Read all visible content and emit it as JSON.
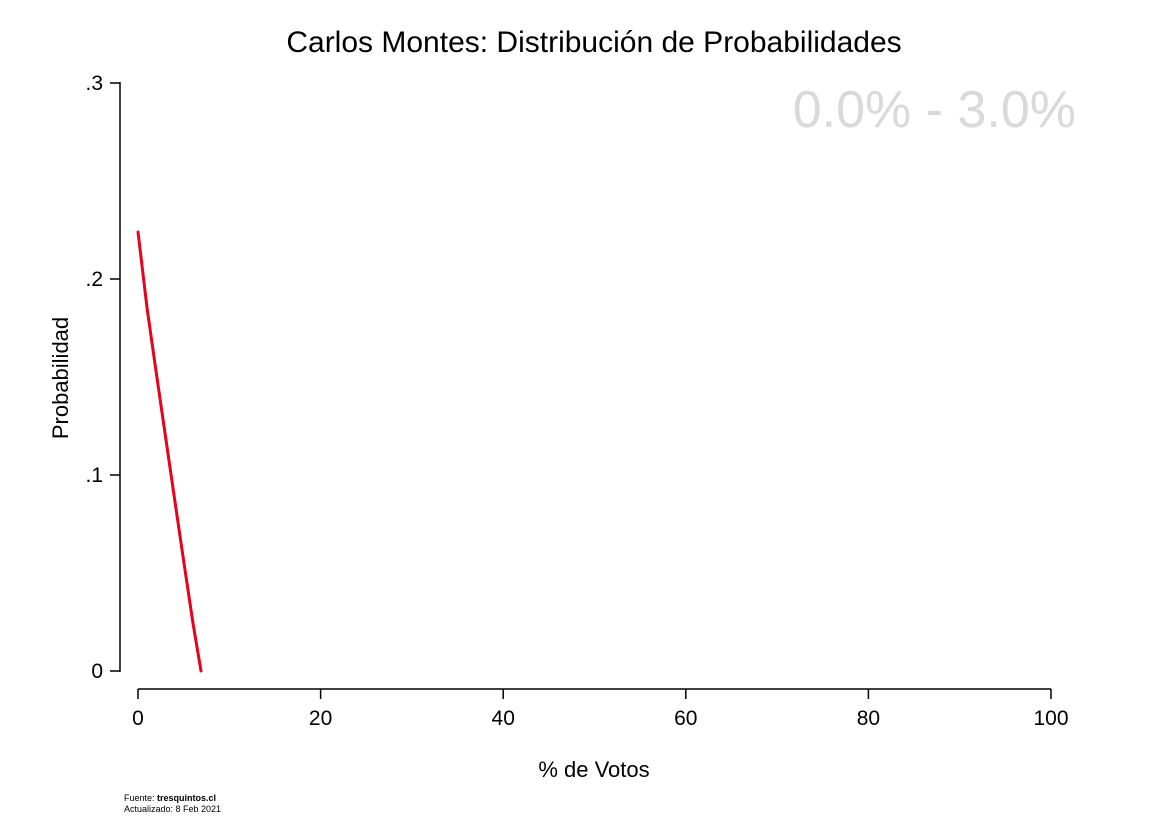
{
  "chart_data": {
    "type": "line",
    "title": "Carlos Montes: Distribución de Probabilidades",
    "xlabel": "% de Votos",
    "ylabel": "Probabilidad",
    "xlim": [
      0,
      100
    ],
    "ylim": [
      0,
      0.3
    ],
    "x_ticks": [
      0,
      20,
      40,
      60,
      80,
      100
    ],
    "x_tick_labels": [
      "0",
      "20",
      "40",
      "60",
      "80",
      "100"
    ],
    "y_ticks": [
      0,
      0.1,
      0.2,
      0.3
    ],
    "y_tick_labels": [
      "0",
      ".1",
      ".2",
      ".3"
    ],
    "grid": false,
    "annotation": "0.0% - 3.0%",
    "series": [
      {
        "color": "#e8001c",
        "x": [
          0,
          1,
          2,
          3,
          4,
          5,
          6,
          6.9
        ],
        "y": [
          0.224,
          0.185,
          0.152,
          0.12,
          0.088,
          0.056,
          0.025,
          0.0
        ]
      }
    ]
  },
  "footer": {
    "source_label": "Fuente:",
    "source_site": "tresquintos.cl",
    "updated": "Actualizado: 8 Feb 2021"
  },
  "colors": {
    "line": "#e8001c",
    "annotation": "#d9d9d9",
    "axis": "#000000"
  }
}
